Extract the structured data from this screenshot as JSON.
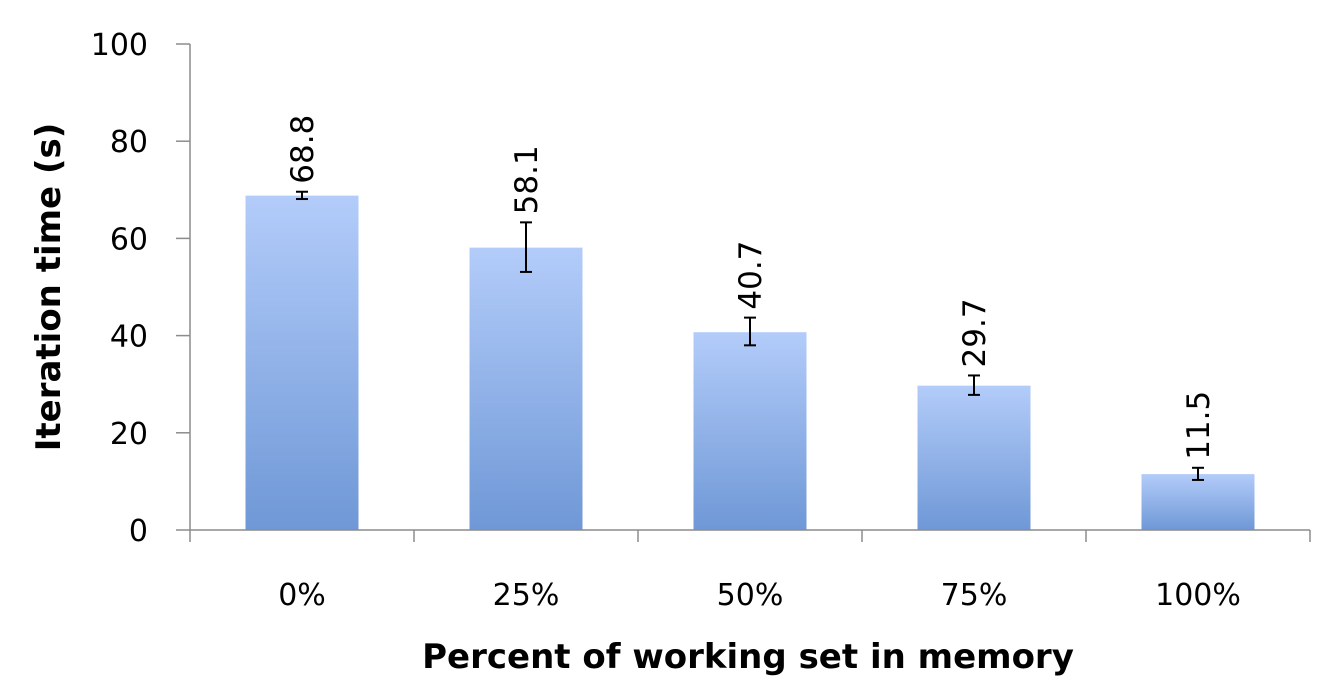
{
  "colors": {
    "bar_top": "#b3ccfa",
    "bar_bottom": "#6f98d6",
    "axis": "#8c8c8c",
    "text": "#000000"
  },
  "chart_data": {
    "type": "bar",
    "title": "",
    "xlabel": "Percent of working set in memory",
    "ylabel": "Iteration time (s)",
    "categories": [
      "0%",
      "25%",
      "50%",
      "75%",
      "100%"
    ],
    "values": [
      68.8,
      58.1,
      40.7,
      29.7,
      11.5
    ],
    "value_labels": [
      "68.8",
      "58.1",
      "40.7",
      "29.7",
      "11.5"
    ],
    "error_bars": [
      {
        "low": 68.1,
        "high": 69.6
      },
      {
        "low": 53.1,
        "high": 63.3
      },
      {
        "low": 38.0,
        "high": 43.7
      },
      {
        "low": 27.8,
        "high": 31.8
      },
      {
        "low": 10.3,
        "high": 12.8
      }
    ],
    "ylim": [
      0,
      100
    ],
    "yticks": [
      0,
      20,
      40,
      60,
      80,
      100
    ],
    "ytick_labels": [
      "0",
      "20",
      "40",
      "60",
      "80",
      "100"
    ],
    "grid": false,
    "legend": "none"
  }
}
